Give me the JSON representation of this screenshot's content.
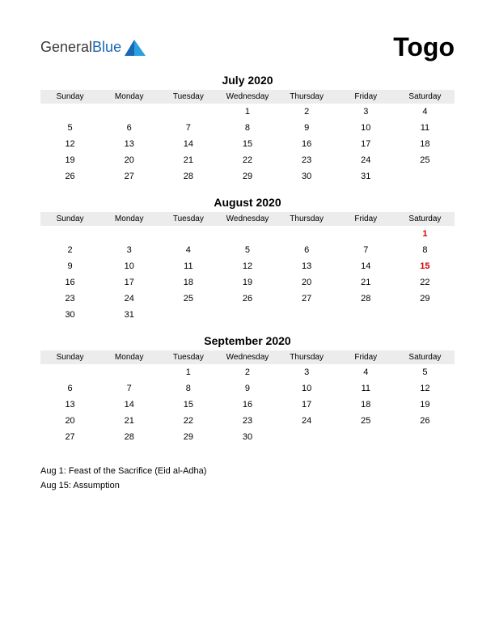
{
  "brand": {
    "part1": "General",
    "part2": "Blue"
  },
  "country": "Togo",
  "day_headers": [
    "Sunday",
    "Monday",
    "Tuesday",
    "Wednesday",
    "Thursday",
    "Friday",
    "Saturday"
  ],
  "holiday_color": "#d40000",
  "header_bg": "#ececec",
  "months": [
    {
      "title": "July 2020",
      "weeks": [
        [
          "",
          "",
          "",
          "1",
          "2",
          "3",
          "4"
        ],
        [
          "5",
          "6",
          "7",
          "8",
          "9",
          "10",
          "11"
        ],
        [
          "12",
          "13",
          "14",
          "15",
          "16",
          "17",
          "18"
        ],
        [
          "19",
          "20",
          "21",
          "22",
          "23",
          "24",
          "25"
        ],
        [
          "26",
          "27",
          "28",
          "29",
          "30",
          "31",
          ""
        ]
      ],
      "holidays": []
    },
    {
      "title": "August 2020",
      "weeks": [
        [
          "",
          "",
          "",
          "",
          "",
          "",
          "1"
        ],
        [
          "2",
          "3",
          "4",
          "5",
          "6",
          "7",
          "8"
        ],
        [
          "9",
          "10",
          "11",
          "12",
          "13",
          "14",
          "15"
        ],
        [
          "16",
          "17",
          "18",
          "19",
          "20",
          "21",
          "22"
        ],
        [
          "23",
          "24",
          "25",
          "26",
          "27",
          "28",
          "29"
        ],
        [
          "30",
          "31",
          "",
          "",
          "",
          "",
          ""
        ]
      ],
      "holidays": [
        "1",
        "15"
      ]
    },
    {
      "title": "September 2020",
      "weeks": [
        [
          "",
          "",
          "1",
          "2",
          "3",
          "4",
          "5"
        ],
        [
          "6",
          "7",
          "8",
          "9",
          "10",
          "11",
          "12"
        ],
        [
          "13",
          "14",
          "15",
          "16",
          "17",
          "18",
          "19"
        ],
        [
          "20",
          "21",
          "22",
          "23",
          "24",
          "25",
          "26"
        ],
        [
          "27",
          "28",
          "29",
          "30",
          "",
          "",
          ""
        ]
      ],
      "holidays": []
    }
  ],
  "notes": [
    "Aug 1: Feast of the Sacrifice (Eid al-Adha)",
    "Aug 15: Assumption"
  ]
}
